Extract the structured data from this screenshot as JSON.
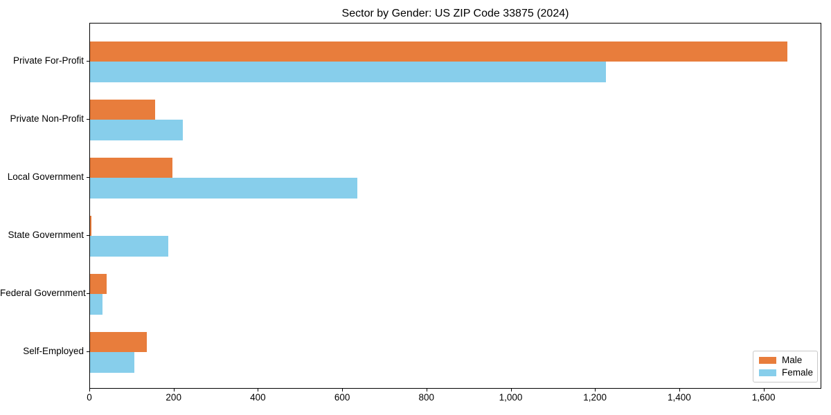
{
  "chart_data": {
    "type": "bar",
    "orientation": "horizontal",
    "title": "Sector by Gender: US ZIP Code 33875 (2024)",
    "categories": [
      "Private For-Profit",
      "Private Non-Profit",
      "Local Government",
      "State Government",
      "Federal Government",
      "Self-Employed"
    ],
    "series": [
      {
        "name": "Male",
        "color": "#e87d3c",
        "values": [
          1655,
          155,
          195,
          3,
          40,
          135
        ]
      },
      {
        "name": "Female",
        "color": "#87ceeb",
        "values": [
          1225,
          220,
          635,
          185,
          30,
          105
        ]
      }
    ],
    "xlabel": "",
    "ylabel": "",
    "xlim": [
      0,
      1737
    ],
    "xticks": [
      {
        "value": 0,
        "label": "0"
      },
      {
        "value": 200,
        "label": "200"
      },
      {
        "value": 400,
        "label": "400"
      },
      {
        "value": 600,
        "label": "600"
      },
      {
        "value": 800,
        "label": "800"
      },
      {
        "value": 1000,
        "label": "1,000"
      },
      {
        "value": 1200,
        "label": "1,200"
      },
      {
        "value": 1400,
        "label": "1,400"
      },
      {
        "value": 1600,
        "label": "1,600"
      }
    ],
    "grid": false,
    "legend_position": "lower right",
    "bar_width_fraction": 0.35
  }
}
